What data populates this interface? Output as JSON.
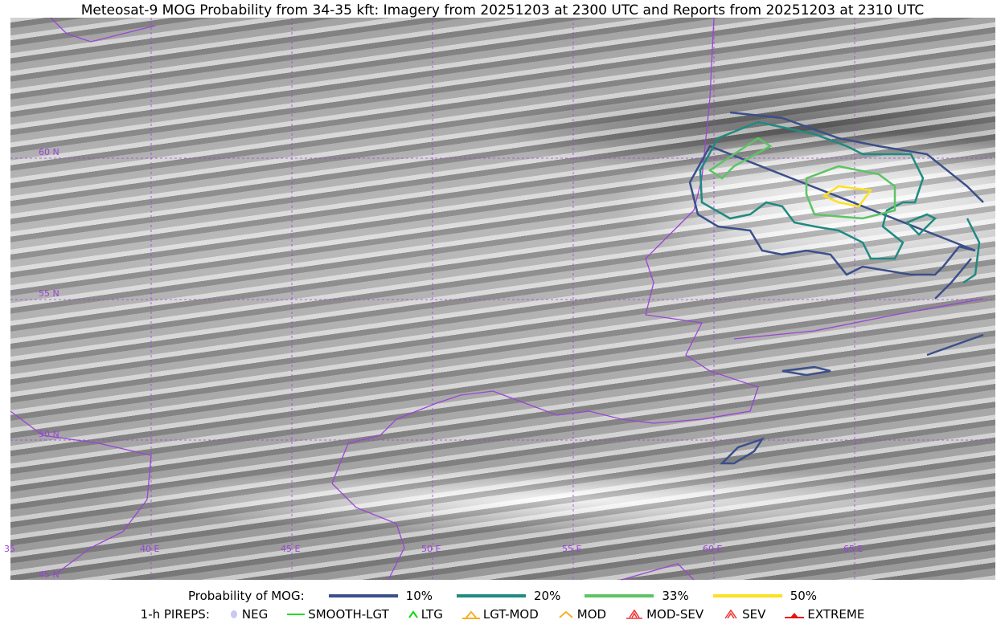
{
  "title": "Meteosat-9 MOG Probability from 34-35 kft: Imagery from 20251203 at 2300 UTC and Reports from 20251203 at 2310 UTC",
  "map": {
    "longitude_labels": [
      "35",
      "40 E",
      "45 E",
      "50 E",
      "55 E",
      "60 E",
      "65 E"
    ],
    "latitude_labels": [
      "60 N",
      "55 N",
      "50 N",
      "45 N"
    ],
    "grid_color": "#9b44d6",
    "border_color": "#9b44d6"
  },
  "legend": {
    "probability_label": "Probability of MOG:",
    "probability_levels": [
      {
        "label": "10%",
        "color": "#3b4f8a"
      },
      {
        "label": "20%",
        "color": "#1f8a80"
      },
      {
        "label": "33%",
        "color": "#5cc463"
      },
      {
        "label": "50%",
        "color": "#fde023"
      }
    ],
    "pireps_label": "1-h PIREPS:",
    "pireps": [
      {
        "label": "NEG",
        "color": "#c8c8f5",
        "icon": "neg-circle-icon"
      },
      {
        "label": "SMOOTH-LGT",
        "color": "#22dd22",
        "icon": "line-icon"
      },
      {
        "label": "LTG",
        "color": "#00dd00",
        "icon": "caret-icon"
      },
      {
        "label": "LGT-MOD",
        "color": "#f5b122",
        "icon": "caret-bar-icon"
      },
      {
        "label": "MOD",
        "color": "#f5b122",
        "icon": "caret-icon"
      },
      {
        "label": "MOD-SEV",
        "color": "#f03030",
        "icon": "double-caret-bar-icon"
      },
      {
        "label": "SEV",
        "color": "#f03030",
        "icon": "double-caret-icon"
      },
      {
        "label": "EXTREME",
        "color": "#f01010",
        "icon": "filled-triangle-icon"
      }
    ]
  }
}
